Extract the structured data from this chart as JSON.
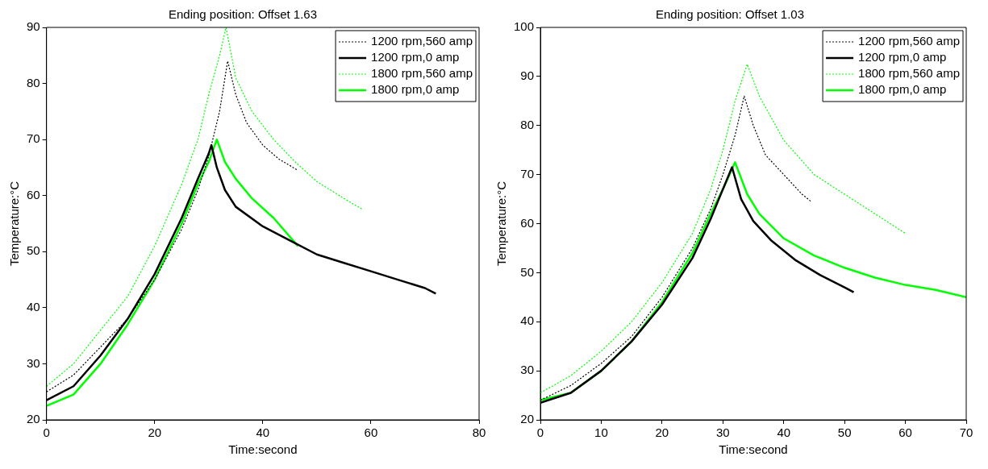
{
  "chart_data": [
    {
      "type": "line",
      "title": "Ending position: Offset 1.63",
      "xlabel": "Time:second",
      "ylabel": "Temperature:°C",
      "xlim": [
        0,
        80
      ],
      "xticks": [
        0,
        20,
        40,
        60,
        80
      ],
      "ylim": [
        20,
        90
      ],
      "yticks": [
        20,
        30,
        40,
        50,
        60,
        70,
        80,
        90
      ],
      "grid": false,
      "legend": "top right",
      "marker": "none",
      "series": [
        {
          "name": "1200 rpm,560 amp",
          "color": "#000000",
          "line_style": "dotted",
          "x": [
            0,
            5,
            10,
            15,
            20,
            25,
            28,
            30,
            32,
            33.5,
            35,
            37,
            40,
            43,
            46.5
          ],
          "values": [
            25,
            28,
            33,
            38,
            45,
            54,
            61,
            67,
            75,
            84,
            78,
            73,
            69,
            66.5,
            64.5
          ]
        },
        {
          "name": "1200 rpm,0 amp",
          "color": "#000000",
          "line_style": "solid",
          "x": [
            0,
            5,
            10,
            15,
            20,
            25,
            28,
            30,
            30.5,
            31.5,
            33,
            35,
            40,
            45,
            50,
            55,
            60,
            65,
            70,
            72
          ],
          "values": [
            23.5,
            26,
            31.5,
            38,
            46,
            56,
            63,
            67.5,
            69,
            65,
            61,
            58,
            54.5,
            52,
            49.5,
            48,
            46.5,
            45,
            43.5,
            42.5
          ]
        },
        {
          "name": "1800 rpm,560 amp",
          "color": "#00ff00",
          "line_style": "dotted",
          "x": [
            0,
            5,
            10,
            15,
            20,
            25,
            28,
            30,
            32,
            33.2,
            35,
            38,
            42,
            46,
            50,
            55,
            58.5
          ],
          "values": [
            26,
            30,
            36,
            42,
            51,
            62,
            70,
            78,
            85,
            90,
            81,
            75,
            70,
            66,
            62.5,
            59.5,
            57.5
          ]
        },
        {
          "name": "1800 rpm,0 amp",
          "color": "#00ff00",
          "line_style": "solid",
          "x": [
            0,
            5,
            10,
            15,
            20,
            25,
            28,
            30,
            31.5,
            33,
            35,
            38,
            42,
            46.5
          ],
          "values": [
            22.5,
            24.5,
            30,
            37,
            45,
            55,
            62,
            66,
            70,
            66,
            63,
            59.5,
            56,
            51
          ]
        }
      ]
    },
    {
      "type": "line",
      "title": "Ending position: Offset 1.03",
      "xlabel": "Time:second",
      "ylabel": "Temperature:°C",
      "xlim": [
        0,
        70
      ],
      "xticks": [
        0,
        10,
        20,
        30,
        40,
        50,
        60,
        70
      ],
      "ylim": [
        20,
        100
      ],
      "yticks": [
        20,
        30,
        40,
        50,
        60,
        70,
        80,
        90,
        100
      ],
      "grid": false,
      "legend": "top right",
      "marker": "none",
      "series": [
        {
          "name": "1200 rpm,560 amp",
          "color": "#000000",
          "line_style": "dotted",
          "x": [
            0,
            5,
            10,
            15,
            20,
            25,
            28,
            30,
            32,
            33.5,
            35,
            37,
            40,
            43,
            44.5
          ],
          "values": [
            24,
            27,
            31.5,
            37,
            45,
            55,
            63,
            70,
            78,
            86,
            80,
            74,
            70,
            66,
            64.5
          ]
        },
        {
          "name": "1200 rpm,0 amp",
          "color": "#000000",
          "line_style": "solid",
          "x": [
            0,
            5,
            10,
            15,
            20,
            25,
            28,
            30,
            31.5,
            33,
            35,
            38,
            42,
            46,
            50,
            51.5
          ],
          "values": [
            23.5,
            25.5,
            30,
            36,
            43.5,
            53,
            61,
            67,
            71.5,
            65,
            60.5,
            56.5,
            52.5,
            49.5,
            47,
            46
          ]
        },
        {
          "name": "1800 rpm,560 amp",
          "color": "#00ff00",
          "line_style": "dotted",
          "x": [
            0,
            5,
            10,
            15,
            20,
            25,
            28,
            30,
            32,
            34,
            36,
            40,
            45,
            50,
            55,
            60
          ],
          "values": [
            25.5,
            29,
            34,
            40,
            48,
            58,
            67,
            75,
            85,
            92.5,
            86,
            77,
            70,
            66,
            62,
            58
          ]
        },
        {
          "name": "1800 rpm,0 amp",
          "color": "#00ff00",
          "line_style": "solid",
          "x": [
            0,
            5,
            10,
            15,
            20,
            25,
            28,
            30,
            32,
            34,
            36,
            40,
            45,
            50,
            55,
            60,
            65,
            70
          ],
          "values": [
            24,
            25.5,
            30,
            36,
            44,
            54,
            62,
            67,
            72.5,
            66,
            62,
            57,
            53.5,
            51,
            49,
            47.5,
            46.5,
            45
          ]
        }
      ]
    }
  ]
}
